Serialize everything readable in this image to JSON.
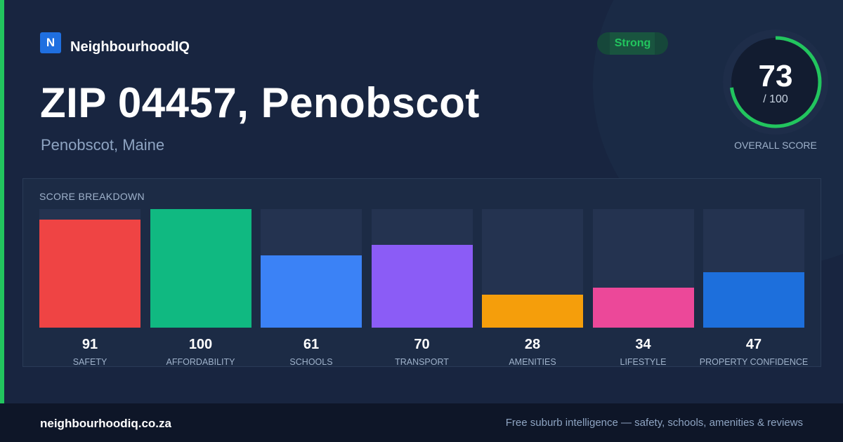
{
  "brand": {
    "logo_letter": "N",
    "name": "NeighbourhoodIQ"
  },
  "header": {
    "title": "ZIP 04457, Penobscot",
    "subtitle": "Penobscot, Maine"
  },
  "badge": {
    "label": "Strong"
  },
  "overall_score": {
    "value": "73",
    "max": "/ 100",
    "label": "OVERALL SCORE",
    "fraction": 0.73
  },
  "breakdown": {
    "title": "SCORE BREAKDOWN",
    "max": 100,
    "items": [
      {
        "label": "SAFETY",
        "value": "91",
        "score": 91,
        "color": "#ef4444"
      },
      {
        "label": "AFFORDABILITY",
        "value": "100",
        "score": 100,
        "color": "#10b981"
      },
      {
        "label": "SCHOOLS",
        "value": "61",
        "score": 61,
        "color": "#3b82f6"
      },
      {
        "label": "TRANSPORT",
        "value": "70",
        "score": 70,
        "color": "#8b5cf6"
      },
      {
        "label": "AMENITIES",
        "value": "28",
        "score": 28,
        "color": "#f59e0b"
      },
      {
        "label": "LIFESTYLE",
        "value": "34",
        "score": 34,
        "color": "#ec4899"
      },
      {
        "label": "PROPERTY CONFIDENCE",
        "value": "47",
        "score": 47,
        "color": "#1d6fdc"
      }
    ]
  },
  "colors": {
    "accent": "#22c55e",
    "background": "#182540",
    "footer": "#0e1628"
  },
  "footer": {
    "url": "neighbourhoodiq.co.za",
    "tagline": "Free suburb intelligence — safety, schools, amenities & reviews"
  }
}
